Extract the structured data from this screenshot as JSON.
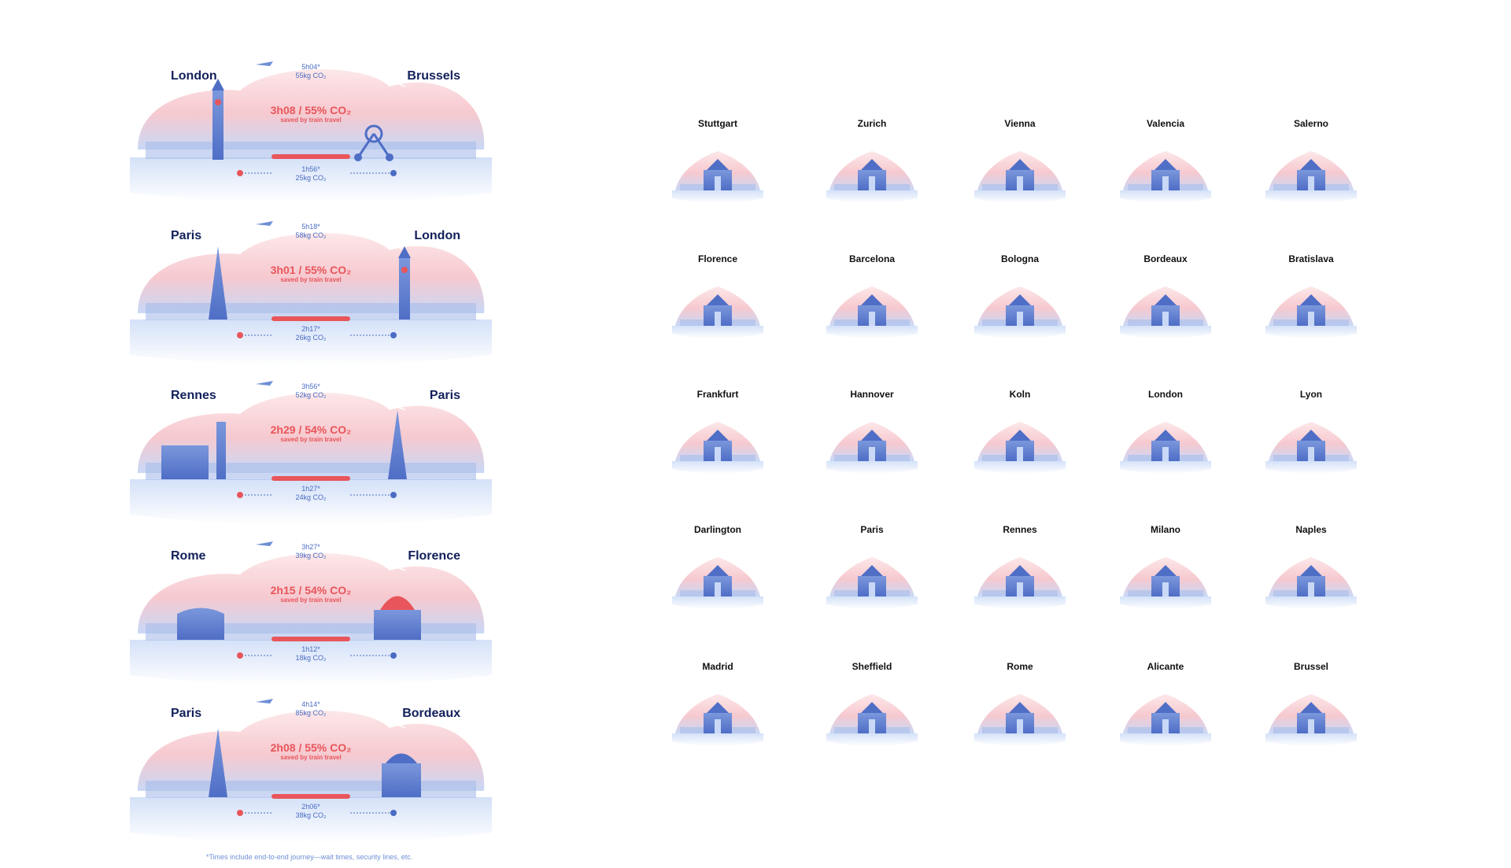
{
  "routes": [
    {
      "from": "London",
      "to": "Brussels",
      "flight_time": "5h04*",
      "flight_co2": "55kg CO₂",
      "saving": "3h08 / 55% CO₂",
      "saving_note": "saved by train travel",
      "train_time": "1h56*",
      "train_co2": "25kg CO₂"
    },
    {
      "from": "Paris",
      "to": "London",
      "flight_time": "5h18*",
      "flight_co2": "58kg CO₂",
      "saving": "3h01 / 55% CO₂",
      "saving_note": "saved by train travel",
      "train_time": "2h17*",
      "train_co2": "26kg CO₂"
    },
    {
      "from": "Rennes",
      "to": "Paris",
      "flight_time": "3h56*",
      "flight_co2": "52kg CO₂",
      "saving": "2h29 / 54% CO₂",
      "saving_note": "saved by train travel",
      "train_time": "1h27*",
      "train_co2": "24kg CO₂"
    },
    {
      "from": "Rome",
      "to": "Florence",
      "flight_time": "3h27*",
      "flight_co2": "39kg CO₂",
      "saving": "2h15 / 54% CO₂",
      "saving_note": "saved by train travel",
      "train_time": "1h12*",
      "train_co2": "18kg CO₂"
    },
    {
      "from": "Paris",
      "to": "Bordeaux",
      "flight_time": "4h14*",
      "flight_co2": "85kg CO₂",
      "saving": "2h08 / 55% CO₂",
      "saving_note": "saved by train travel",
      "train_time": "2h06*",
      "train_co2": "38kg CO₂"
    }
  ],
  "footnote": "*Times include end-to-end journey—wait times, security lines, etc.",
  "city_icons": [
    [
      "Stuttgart",
      "Zurich",
      "Vienna",
      "Valencia",
      "Salerno"
    ],
    [
      "Florence",
      "Barcelona",
      "Bologna",
      "Bordeaux",
      "Bratislava"
    ],
    [
      "Frankfurt",
      "Hannover",
      "Koln",
      "London",
      "Lyon"
    ],
    [
      "Darlington",
      "Paris",
      "Rennes",
      "Milano",
      "Naples"
    ],
    [
      "Madrid",
      "Sheffield",
      "Rome",
      "Alicante",
      "Brussel"
    ]
  ],
  "colors": {
    "navy": "#12205a",
    "accent_red": "#e8555a",
    "blue": "#4a6cc4",
    "pink": "#f7d3d6",
    "light_blue": "#dfe9fb"
  }
}
